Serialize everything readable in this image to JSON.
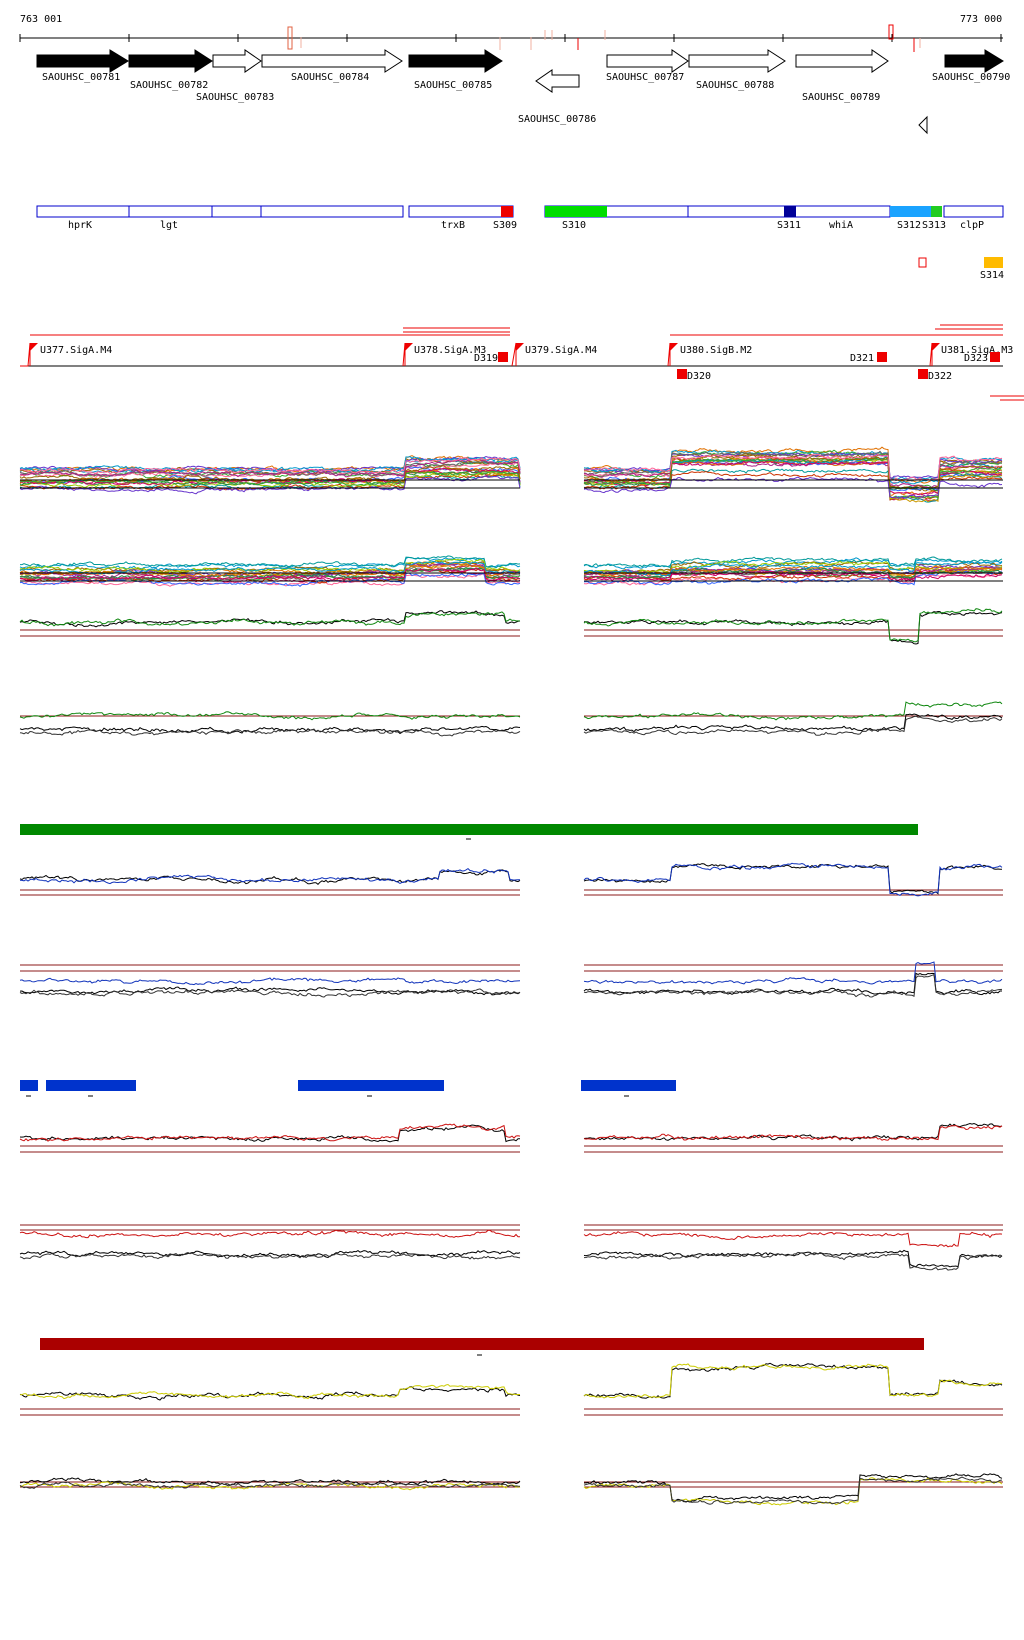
{
  "ruler": {
    "start_label": "763 001",
    "end_label": "773 000"
  },
  "genes": [
    {
      "label": "SAOUHSC_00781",
      "dir": "fwd",
      "fill": "black"
    },
    {
      "label": "SAOUHSC_00782",
      "dir": "fwd",
      "fill": "black"
    },
    {
      "label": "SAOUHSC_00783",
      "dir": "fwd",
      "fill": "white"
    },
    {
      "label": "SAOUHSC_00784",
      "dir": "fwd",
      "fill": "white"
    },
    {
      "label": "SAOUHSC_00785",
      "dir": "fwd",
      "fill": "black"
    },
    {
      "label": "SAOUHSC_00786",
      "dir": "rev",
      "fill": "white"
    },
    {
      "label": "SAOUHSC_00787",
      "dir": "fwd",
      "fill": "white"
    },
    {
      "label": "SAOUHSC_00788",
      "dir": "fwd",
      "fill": "white"
    },
    {
      "label": "SAOUHSC_00789",
      "dir": "fwd",
      "fill": "white"
    },
    {
      "label": "SAOUHSC_00790",
      "dir": "fwd",
      "fill": "black"
    }
  ],
  "gene_names": [
    "hprK",
    "lgt",
    "trxB",
    "whiA",
    "clpP"
  ],
  "segments": [
    {
      "label": "S309",
      "color": "#ee0000"
    },
    {
      "label": "S310",
      "color": "#00dd00"
    },
    {
      "label": "S311",
      "color": "#000099"
    },
    {
      "label": "S312",
      "color": "#1aa3ff"
    },
    {
      "label": "S313",
      "color": "#22cc22"
    },
    {
      "label": "S314",
      "color": "#ffbb00"
    }
  ],
  "promoters": [
    "U377.SigA.M4",
    "U378.SigA.M3",
    "U379.SigA.M4",
    "U380.SigB.M2",
    "U381.SigA.M3"
  ],
  "terminators": [
    "D319",
    "D320",
    "D321",
    "D322",
    "D323"
  ],
  "colors": {
    "gene_box": "#0000cc",
    "annotation_red": "#ee0000",
    "threshold": "#8b1a1a",
    "green_bar": "#008800",
    "blue_bar": "#0033cc",
    "red_bar": "#aa0000",
    "trace_green": "#118811",
    "trace_blue": "#1133bb",
    "trace_red": "#cc1111",
    "trace_yellow": "#cccc00"
  }
}
